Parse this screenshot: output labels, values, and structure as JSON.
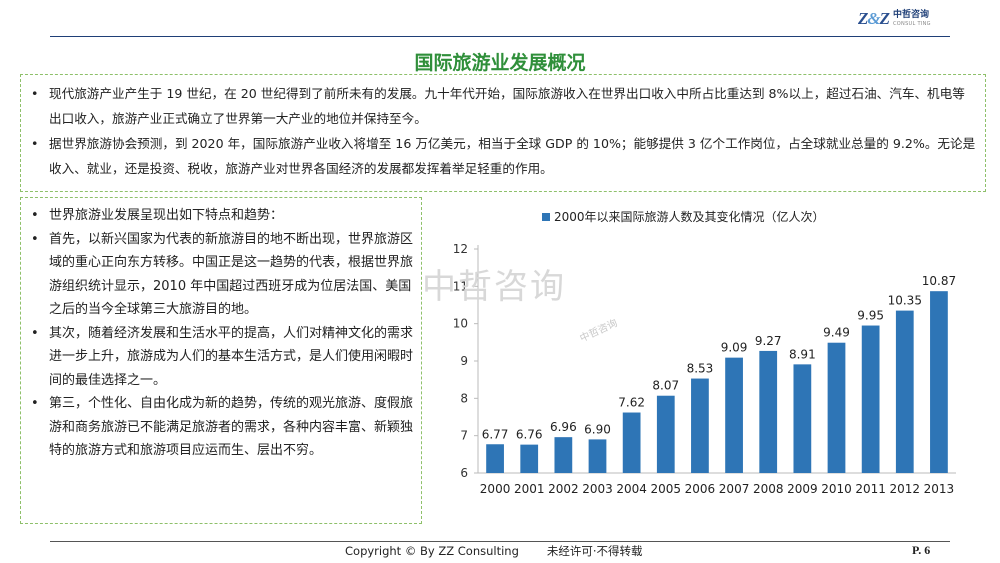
{
  "logo": {
    "mark_left": "Z",
    "mark_amp": "&",
    "mark_right": "Z",
    "name_cn": "中哲咨询",
    "name_en": "CONSUL TING"
  },
  "title": "国际旅游业发展概况",
  "top_bullets": [
    {
      "text": "现代旅游产业产生于 19 世纪，在 20 世纪得到了前所未有的发展。九十年代开始，国际旅游收入在世界出口收入中所占比重达到 8%以上，超过石油、汽车、机电等出口收入，旅游产业正式确立了世界第一大产业的地位并保持至今。"
    },
    {
      "text": "据世界旅游协会预测，到 2020 年，国际旅游产业收入将增至 16 万亿美元，相当于全球 GDP 的 10%；能够提供 3 亿个工作岗位，占全球就业总量的 9.2%。无论是收入、就业，还是投资、税收，旅游产业对世界各国经济的发展都发挥着举足轻重的作用。"
    }
  ],
  "left_bullets": [
    {
      "text": "世界旅游业发展呈现出如下特点和趋势："
    },
    {
      "text": "首先，以新兴国家为代表的新旅游目的地不断出现，世界旅游区域的重心正向东方转移。中国正是这一趋势的代表，根据世界旅游组织统计显示，2010 年中国超过西班牙成为位居法国、美国之后的当今全球第三大旅游目的地。"
    },
    {
      "text": "其次，随着经济发展和生活水平的提高，人们对精神文化的需求进一步上升，旅游成为人们的基本生活方式，是人们使用闲暇时间的最佳选择之一。"
    },
    {
      "text": "第三，个性化、自由化成为新的趋势，传统的观光旅游、度假旅游和商务旅游已不能满足旅游者的需求，各种内容丰富、新颖独特的旅游方式和旅游项目应运而生、层出不穷。"
    }
  ],
  "bullet_glyph": "•",
  "watermark": {
    "large": "中哲咨询",
    "small": "中哲咨询"
  },
  "chart_data": {
    "type": "bar",
    "title": "",
    "xlabel": "",
    "ylabel": "",
    "categories": [
      "2000",
      "2001",
      "2002",
      "2003",
      "2004",
      "2005",
      "2006",
      "2007",
      "2008",
      "2009",
      "2010",
      "2011",
      "2012",
      "2013"
    ],
    "series": [
      {
        "name": "2000年以来国际旅游人数及其变化情况（亿人次）",
        "values": [
          6.77,
          6.76,
          6.96,
          6.9,
          7.62,
          8.07,
          8.53,
          9.09,
          9.27,
          8.91,
          9.49,
          9.95,
          10.35,
          10.87
        ]
      }
    ],
    "ylim": [
      6,
      12
    ],
    "yticks": [
      6,
      7,
      8,
      9,
      10,
      11,
      12
    ],
    "grid": false,
    "legend_position": "top",
    "bar_color": "#2e75b6"
  },
  "footer": {
    "copyright": "Copyright © By  ZZ Consulting",
    "note": "未经许可·不得转载",
    "page": "P. 6"
  }
}
